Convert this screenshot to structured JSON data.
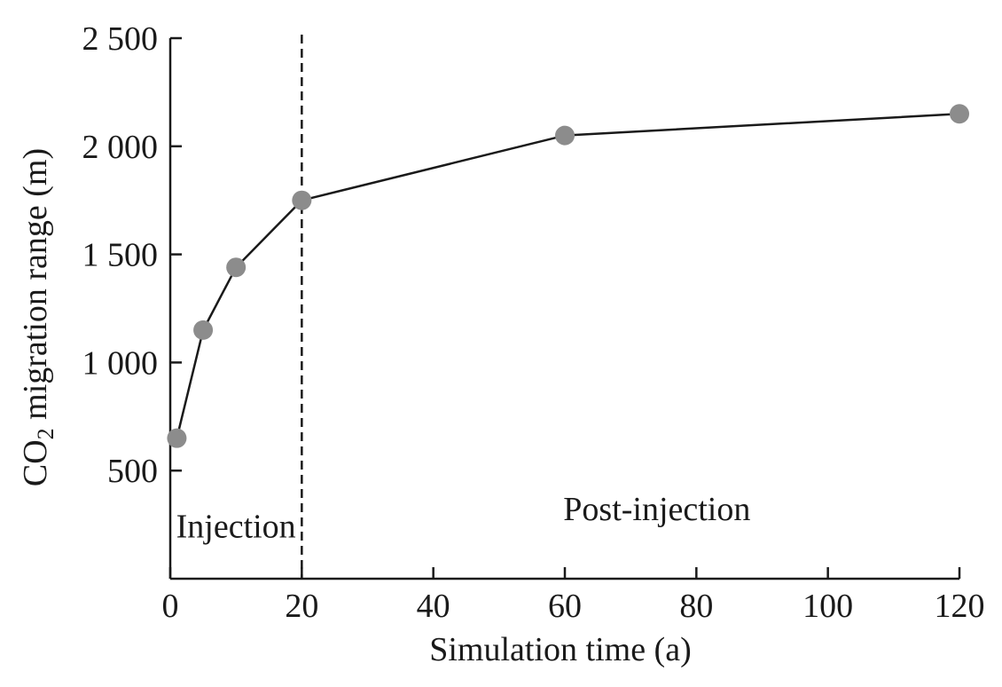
{
  "chart_data": {
    "type": "line",
    "title": "",
    "xlabel": "Simulation time (a)",
    "ylabel": {
      "prefix": "CO",
      "subscript": "2",
      "suffix": " migration range (m)"
    },
    "x": [
      1,
      5,
      10,
      20,
      60,
      120
    ],
    "series": [
      {
        "name": "CO2 migration range",
        "values": [
          650,
          1150,
          1440,
          1750,
          2050,
          2150
        ],
        "line_color": "#1a1a1a",
        "marker_color": "#8c8c8c"
      }
    ],
    "xlim": [
      0,
      120
    ],
    "ylim": [
      0,
      2500
    ],
    "xticks": [
      0,
      20,
      40,
      60,
      80,
      100,
      120
    ],
    "xtick_labels": [
      "0",
      "20",
      "40",
      "60",
      "80",
      "100",
      "120"
    ],
    "yticks": [
      500,
      1000,
      1500,
      2000,
      2500
    ],
    "ytick_labels": [
      "500",
      "1 000",
      "1 500",
      "2 000",
      "2 500"
    ],
    "grid": false,
    "divider": {
      "x": 20,
      "style": "dashed"
    },
    "annotations": [
      {
        "text": "Injection",
        "x": 10,
        "y": 190
      },
      {
        "text": "Post-injection",
        "x": 74,
        "y": 270
      }
    ]
  }
}
